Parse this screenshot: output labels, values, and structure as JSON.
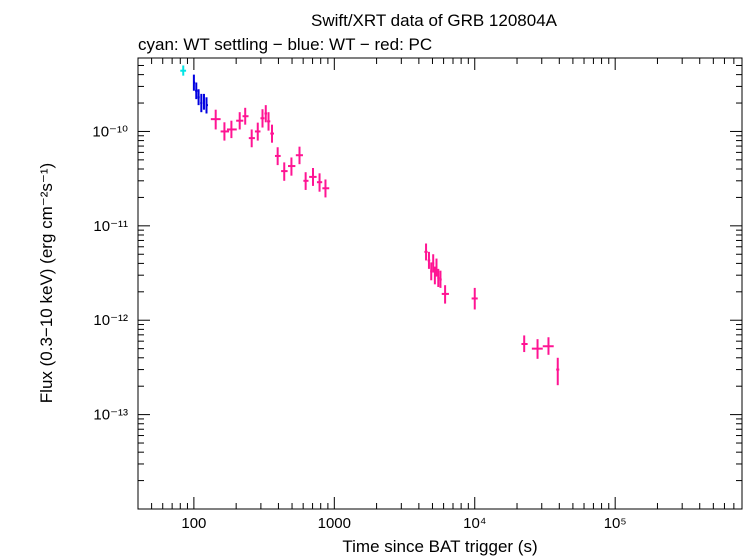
{
  "chart_data": {
    "type": "scatter",
    "title": "Swift/XRT data of GRB 120804A",
    "subtitle": "cyan: WT settling − blue: WT − red: PC",
    "xlabel": "Time since BAT trigger (s)",
    "ylabel": "Flux (0.3−10 keV) (erg cm⁻²s⁻¹)",
    "x_scale": "log",
    "y_scale": "log",
    "xlim": [
      40,
      800000
    ],
    "ylim": [
      1e-14,
      6e-10
    ],
    "x_ticks": [
      {
        "value": 100,
        "label": "100"
      },
      {
        "value": 1000,
        "label": "1000"
      },
      {
        "value": 10000,
        "label": "10⁴"
      },
      {
        "value": 100000,
        "label": "10⁵"
      }
    ],
    "y_ticks": [
      {
        "value": 1e-10,
        "label": "10⁻¹⁰"
      },
      {
        "value": 1e-11,
        "label": "10⁻¹¹"
      },
      {
        "value": 1e-12,
        "label": "10⁻¹²"
      },
      {
        "value": 1e-13,
        "label": "10⁻¹³"
      }
    ],
    "grid": false,
    "series": [
      {
        "name": "WT settling",
        "color": "#00e5e5",
        "points": [
          {
            "x": 84,
            "y": 4.4e-10,
            "xlo": 80,
            "xhi": 88,
            "ylo": 3.9e-10,
            "yhi": 5e-10
          }
        ]
      },
      {
        "name": "WT",
        "color": "#0000e0",
        "points": [
          {
            "x": 100,
            "y": 3.3e-10,
            "xlo": 99,
            "xhi": 102,
            "ylo": 2.7e-10,
            "yhi": 4e-10
          },
          {
            "x": 104,
            "y": 2.7e-10,
            "xlo": 102,
            "xhi": 106,
            "ylo": 2.2e-10,
            "yhi": 3.3e-10
          },
          {
            "x": 108,
            "y": 2.3e-10,
            "xlo": 106,
            "xhi": 110,
            "ylo": 1.9e-10,
            "yhi": 2.8e-10
          },
          {
            "x": 113,
            "y": 2e-10,
            "xlo": 111,
            "xhi": 115,
            "ylo": 1.6e-10,
            "yhi": 2.5e-10
          },
          {
            "x": 118,
            "y": 2.1e-10,
            "xlo": 116,
            "xhi": 120,
            "ylo": 1.7e-10,
            "yhi": 2.5e-10
          },
          {
            "x": 123,
            "y": 1.9e-10,
            "xlo": 121,
            "xhi": 126,
            "ylo": 1.55e-10,
            "yhi": 2.3e-10
          }
        ]
      },
      {
        "name": "PC",
        "color": "#ff1493",
        "points": [
          {
            "x": 143,
            "y": 1.35e-10,
            "xlo": 132,
            "xhi": 155,
            "ylo": 1.05e-10,
            "yhi": 1.7e-10
          },
          {
            "x": 165,
            "y": 1e-10,
            "xlo": 155,
            "xhi": 178,
            "ylo": 8e-11,
            "yhi": 1.25e-10
          },
          {
            "x": 185,
            "y": 1.05e-10,
            "xlo": 172,
            "xhi": 202,
            "ylo": 8.5e-11,
            "yhi": 1.3e-10
          },
          {
            "x": 212,
            "y": 1.3e-10,
            "xlo": 200,
            "xhi": 225,
            "ylo": 1.05e-10,
            "yhi": 1.6e-10
          },
          {
            "x": 232,
            "y": 1.45e-10,
            "xlo": 222,
            "xhi": 245,
            "ylo": 1.18e-10,
            "yhi": 1.78e-10
          },
          {
            "x": 258,
            "y": 8.5e-11,
            "xlo": 246,
            "xhi": 272,
            "ylo": 6.8e-11,
            "yhi": 1.05e-10
          },
          {
            "x": 285,
            "y": 1e-10,
            "xlo": 272,
            "xhi": 298,
            "ylo": 8e-11,
            "yhi": 1.24e-10
          },
          {
            "x": 308,
            "y": 1.38e-10,
            "xlo": 298,
            "xhi": 318,
            "ylo": 1.1e-10,
            "yhi": 1.72e-10
          },
          {
            "x": 325,
            "y": 1.55e-10,
            "xlo": 318,
            "xhi": 332,
            "ylo": 1.25e-10,
            "yhi": 1.9e-10
          },
          {
            "x": 340,
            "y": 1.28e-10,
            "xlo": 332,
            "xhi": 350,
            "ylo": 1.02e-10,
            "yhi": 1.6e-10
          },
          {
            "x": 360,
            "y": 9.5e-11,
            "xlo": 350,
            "xhi": 372,
            "ylo": 7.6e-11,
            "yhi": 1.18e-10
          },
          {
            "x": 395,
            "y": 5.5e-11,
            "xlo": 378,
            "xhi": 415,
            "ylo": 4.4e-11,
            "yhi": 6.8e-11
          },
          {
            "x": 440,
            "y": 3.8e-11,
            "xlo": 418,
            "xhi": 465,
            "ylo": 3e-11,
            "yhi": 4.7e-11
          },
          {
            "x": 495,
            "y": 4.3e-11,
            "xlo": 468,
            "xhi": 528,
            "ylo": 3.4e-11,
            "yhi": 5.3e-11
          },
          {
            "x": 565,
            "y": 5.6e-11,
            "xlo": 532,
            "xhi": 598,
            "ylo": 4.5e-11,
            "yhi": 6.9e-11
          },
          {
            "x": 625,
            "y": 3e-11,
            "xlo": 602,
            "xhi": 655,
            "ylo": 2.4e-11,
            "yhi": 3.7e-11
          },
          {
            "x": 705,
            "y": 3.3e-11,
            "xlo": 662,
            "xhi": 748,
            "ylo": 2.65e-11,
            "yhi": 4.1e-11
          },
          {
            "x": 785,
            "y": 2.9e-11,
            "xlo": 752,
            "xhi": 820,
            "ylo": 2.3e-11,
            "yhi": 3.6e-11
          },
          {
            "x": 865,
            "y": 2.5e-11,
            "xlo": 822,
            "xhi": 920,
            "ylo": 2e-11,
            "yhi": 3.1e-11
          },
          {
            "x": 4500,
            "y": 5.3e-12,
            "xlo": 4380,
            "xhi": 4620,
            "ylo": 4.3e-12,
            "yhi": 6.5e-12
          },
          {
            "x": 4720,
            "y": 4.3e-12,
            "xlo": 4620,
            "xhi": 4820,
            "ylo": 3.5e-12,
            "yhi": 5.3e-12
          },
          {
            "x": 4900,
            "y": 3.3e-12,
            "xlo": 4820,
            "xhi": 4980,
            "ylo": 2.65e-12,
            "yhi": 4.1e-12
          },
          {
            "x": 5060,
            "y": 4e-12,
            "xlo": 4980,
            "xhi": 5140,
            "ylo": 3.2e-12,
            "yhi": 5e-12
          },
          {
            "x": 5200,
            "y": 3e-12,
            "xlo": 5140,
            "xhi": 5270,
            "ylo": 2.4e-12,
            "yhi": 3.7e-12
          },
          {
            "x": 5340,
            "y": 3.6e-12,
            "xlo": 5270,
            "xhi": 5420,
            "ylo": 2.9e-12,
            "yhi": 4.5e-12
          },
          {
            "x": 5500,
            "y": 2.8e-12,
            "xlo": 5420,
            "xhi": 5590,
            "ylo": 2.25e-12,
            "yhi": 3.5e-12
          },
          {
            "x": 5700,
            "y": 2.7e-12,
            "xlo": 5590,
            "xhi": 5820,
            "ylo": 2.2e-12,
            "yhi": 3.35e-12
          },
          {
            "x": 6150,
            "y": 1.9e-12,
            "xlo": 5820,
            "xhi": 6550,
            "ylo": 1.5e-12,
            "yhi": 2.35e-12
          },
          {
            "x": 10000,
            "y": 1.7e-12,
            "xlo": 9500,
            "xhi": 10500,
            "ylo": 1.3e-12,
            "yhi": 2.2e-12
          },
          {
            "x": 22500,
            "y": 5.6e-13,
            "xlo": 21500,
            "xhi": 23800,
            "ylo": 4.6e-13,
            "yhi": 6.9e-13
          },
          {
            "x": 28000,
            "y": 5e-13,
            "xlo": 25500,
            "xhi": 30500,
            "ylo": 3.9e-13,
            "yhi": 6.3e-13
          },
          {
            "x": 33500,
            "y": 5.3e-13,
            "xlo": 30500,
            "xhi": 36500,
            "ylo": 4.3e-13,
            "yhi": 6.6e-13
          },
          {
            "x": 39000,
            "y": 3e-13,
            "xlo": 38000,
            "xhi": 40000,
            "ylo": 2.05e-13,
            "yhi": 4e-13
          }
        ]
      }
    ]
  }
}
